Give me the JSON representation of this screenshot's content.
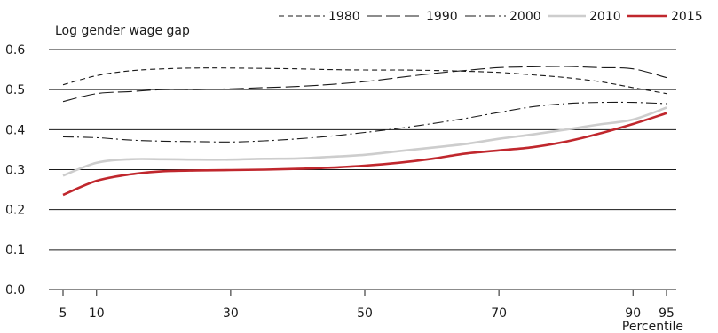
{
  "chart_data": {
    "type": "line",
    "ylabel": "Log gender wage gap",
    "xlabel": "Percentile",
    "ylim": [
      0.0,
      0.6
    ],
    "yticks": [
      0.0,
      0.1,
      0.2,
      0.3,
      0.4,
      0.5,
      0.6
    ],
    "ytick_labels": [
      "0.0",
      "0.1",
      "0.2",
      "0.3",
      "0.4",
      "0.5",
      "0.6"
    ],
    "xlim": [
      5,
      95
    ],
    "xticks": [
      5,
      10,
      30,
      50,
      70,
      90,
      95
    ],
    "xtick_labels": [
      "5",
      "10",
      "30",
      "50",
      "70",
      "90",
      "95"
    ],
    "grid": "horizontal",
    "legend_position": "top-right",
    "x": [
      5,
      10,
      15,
      20,
      25,
      30,
      35,
      40,
      45,
      50,
      55,
      60,
      65,
      70,
      75,
      80,
      85,
      90,
      95
    ],
    "series": [
      {
        "name": "1980",
        "style": "short-dash",
        "color": "#1a1a1a",
        "values": [
          0.512,
          0.535,
          0.547,
          0.552,
          0.554,
          0.554,
          0.553,
          0.552,
          0.55,
          0.549,
          0.549,
          0.548,
          0.546,
          0.543,
          0.537,
          0.53,
          0.52,
          0.505,
          0.49
        ]
      },
      {
        "name": "1990",
        "style": "long-dash",
        "color": "#1a1a1a",
        "values": [
          0.47,
          0.49,
          0.495,
          0.5,
          0.5,
          0.502,
          0.505,
          0.508,
          0.513,
          0.52,
          0.53,
          0.54,
          0.548,
          0.555,
          0.557,
          0.558,
          0.555,
          0.552,
          0.53
        ]
      },
      {
        "name": "2000",
        "style": "dash-dot",
        "color": "#1a1a1a",
        "values": [
          0.382,
          0.38,
          0.374,
          0.371,
          0.37,
          0.369,
          0.372,
          0.377,
          0.384,
          0.393,
          0.403,
          0.415,
          0.428,
          0.443,
          0.457,
          0.465,
          0.468,
          0.468,
          0.465
        ]
      },
      {
        "name": "2010",
        "style": "solid",
        "color": "#cdcdcd",
        "values": [
          0.285,
          0.317,
          0.326,
          0.326,
          0.325,
          0.325,
          0.327,
          0.328,
          0.332,
          0.337,
          0.346,
          0.355,
          0.364,
          0.377,
          0.388,
          0.4,
          0.413,
          0.425,
          0.455
        ]
      },
      {
        "name": "2015",
        "style": "solid",
        "color": "#c0272d",
        "values": [
          0.237,
          0.272,
          0.288,
          0.296,
          0.298,
          0.299,
          0.3,
          0.302,
          0.305,
          0.31,
          0.317,
          0.327,
          0.34,
          0.348,
          0.356,
          0.37,
          0.39,
          0.414,
          0.441
        ]
      }
    ]
  }
}
